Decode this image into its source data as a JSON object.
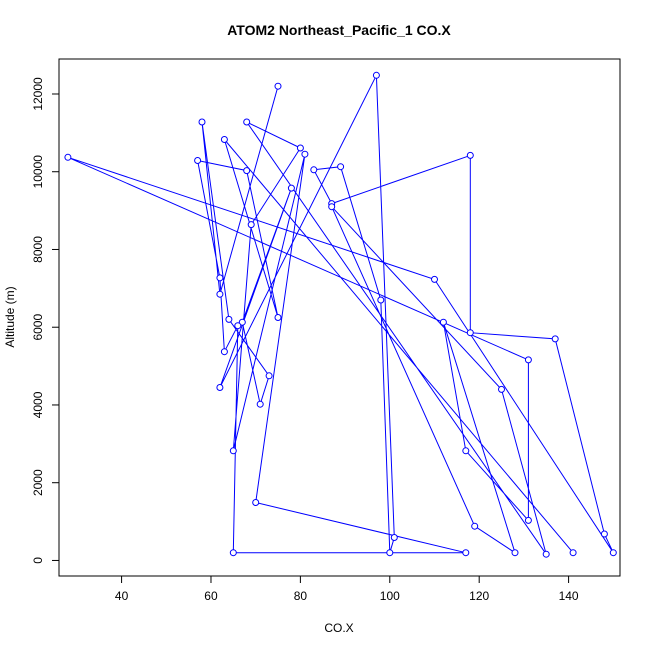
{
  "chart_data": {
    "type": "line",
    "title": "ATOM2 Northeast_Pacific_1 CO.X",
    "xlabel": "CO.X",
    "ylabel": "Altitude (m)",
    "xlim": [
      26,
      151.5
    ],
    "ylim": [
      -400,
      12900
    ],
    "xticks": [
      40,
      60,
      80,
      100,
      120,
      140
    ],
    "yticks": [
      0,
      2000,
      4000,
      6000,
      8000,
      10000,
      12000
    ],
    "color": "#0000ff",
    "markers": "open-circle",
    "series": [
      {
        "name": "",
        "x": [
          75,
          62,
          58,
          64,
          73,
          71,
          67,
          78,
          62,
          97,
          101,
          100,
          98,
          89,
          83,
          87,
          118,
          118,
          137,
          148,
          150,
          110,
          28,
          131,
          131,
          117,
          112,
          128,
          119,
          87,
          125,
          135,
          68,
          80,
          69,
          65,
          81,
          70,
          117,
          65,
          66,
          63,
          62,
          57,
          68,
          75,
          63,
          141
        ],
        "y": [
          12200,
          6850,
          11280,
          6200,
          4750,
          4020,
          6130,
          9580,
          4450,
          12480,
          590,
          200,
          6700,
          10130,
          10050,
          9180,
          10420,
          5860,
          5700,
          680,
          200,
          7230,
          10370,
          5160,
          1030,
          2820,
          6130,
          200,
          880,
          9100,
          4400,
          160,
          11280,
          10610,
          8640,
          2820,
          10450,
          1490,
          200,
          200,
          6040,
          5370,
          7270,
          10290,
          10030,
          6250,
          10830,
          200
        ]
      }
    ]
  }
}
